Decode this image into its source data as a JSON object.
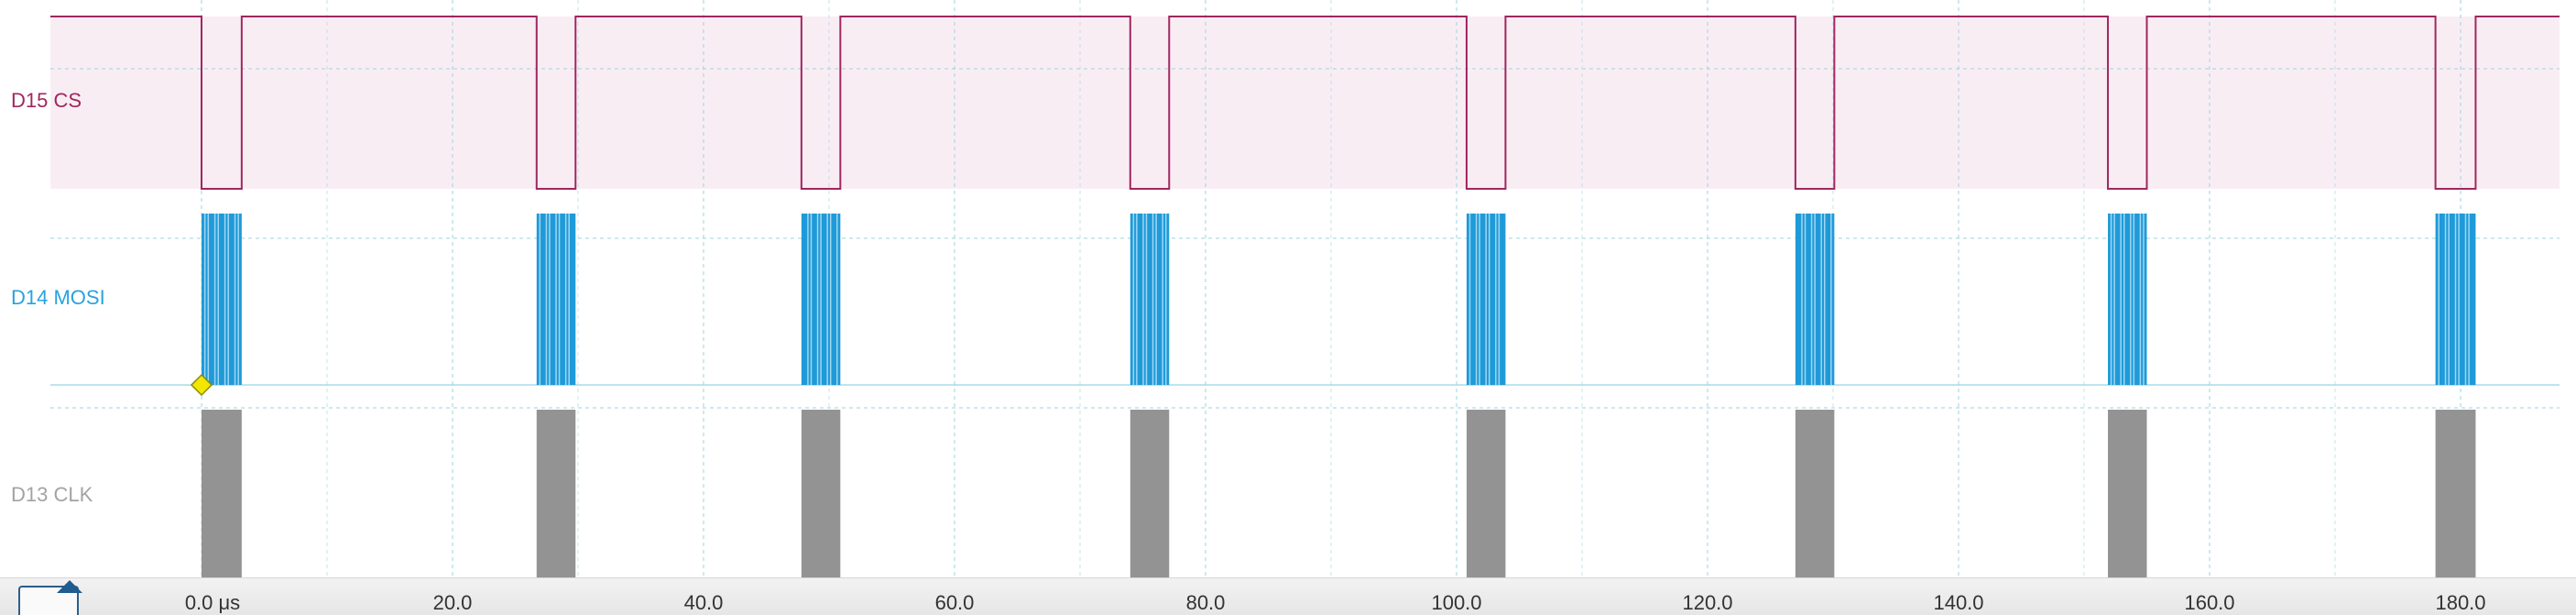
{
  "channels": [
    {
      "label": "D15 CS",
      "color": "#a0275f"
    },
    {
      "label": "D14 MOSI",
      "color": "#29a3dd"
    },
    {
      "label": "D13 CLK",
      "color": "#a3a3a3"
    }
  ],
  "timeline": {
    "ticks": [
      "0.0 μs",
      "20.0",
      "40.0",
      "60.0",
      "80.0",
      "100.0",
      "120.0",
      "140.0",
      "160.0",
      "180.0"
    ],
    "tick_values_us": [
      0,
      20,
      40,
      60,
      80,
      100,
      120,
      140,
      160,
      180
    ],
    "bursts_us": [
      [
        0,
        3.2
      ],
      [
        26.7,
        29.8
      ],
      [
        47.8,
        50.9
      ],
      [
        74.0,
        77.1
      ],
      [
        100.8,
        103.9
      ],
      [
        127.0,
        130.1
      ],
      [
        151.9,
        155.0
      ],
      [
        178.0,
        181.2
      ]
    ],
    "trigger_time_us": 0
  },
  "colors": {
    "cs_fill": "#f9edf4",
    "mosi_bar": "#1f9ad8",
    "mosi_light": "#9fd6f2",
    "clk_bar": "#939393",
    "grid": "#9ed3df",
    "trigger_marker": "#f3e600",
    "nav_accent": "#1f5c8f"
  },
  "navigator": {
    "icon": "caret-up-icon"
  }
}
